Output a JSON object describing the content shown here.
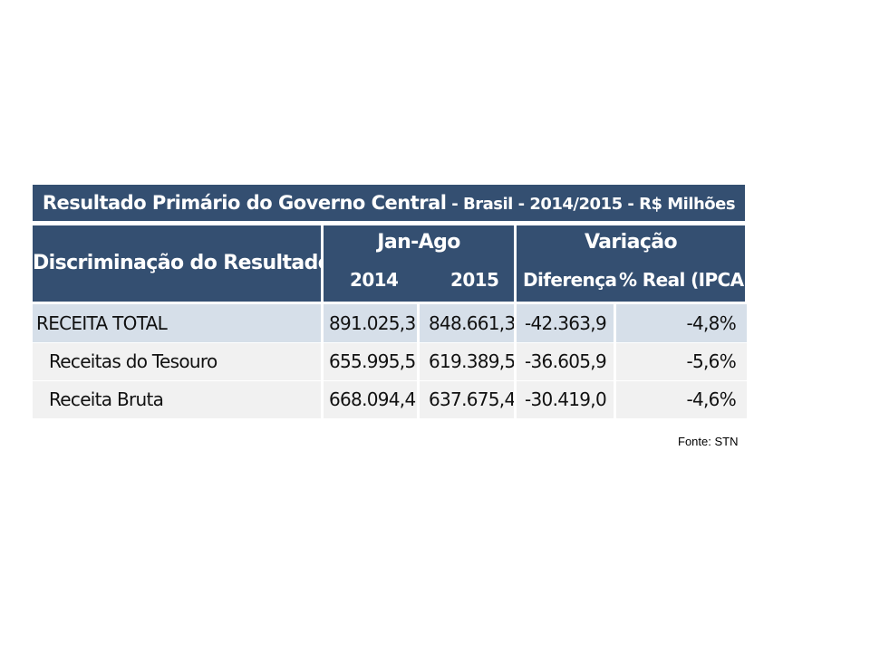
{
  "table": {
    "title_main": "Resultado Primário do Governo Central",
    "title_sub": " - Brasil - 2014/2015 - R$ Milhões",
    "header": {
      "discriminacao": "Discriminação do Resultado",
      "period_group": "Jan-Ago",
      "year_2014": "2014",
      "year_2015": "2015",
      "variation_group": "Variação",
      "diferenca": "Diferença",
      "real_ipca": "% Real (IPCA)"
    },
    "rows": [
      {
        "label": "RECEITA TOTAL",
        "v2014": "891.025,3",
        "v2015": "848.661,3",
        "diff": "-42.363,9",
        "real": "-4,8%"
      },
      {
        "label": "Receitas do Tesouro",
        "v2014": "655.995,5",
        "v2015": "619.389,5",
        "diff": "-36.605,9",
        "real": "-5,6%"
      },
      {
        "label": "Receita Bruta",
        "v2014": "668.094,4",
        "v2015": "637.675,4",
        "diff": "-30.419,0",
        "real": "-4,6%"
      }
    ]
  },
  "source": "Fonte: STN",
  "colors": {
    "header_bg": "#344f71",
    "header_text": "#ffffff",
    "row_highlight": "#d6dfe9",
    "row_bg": "#f1f1f1"
  }
}
